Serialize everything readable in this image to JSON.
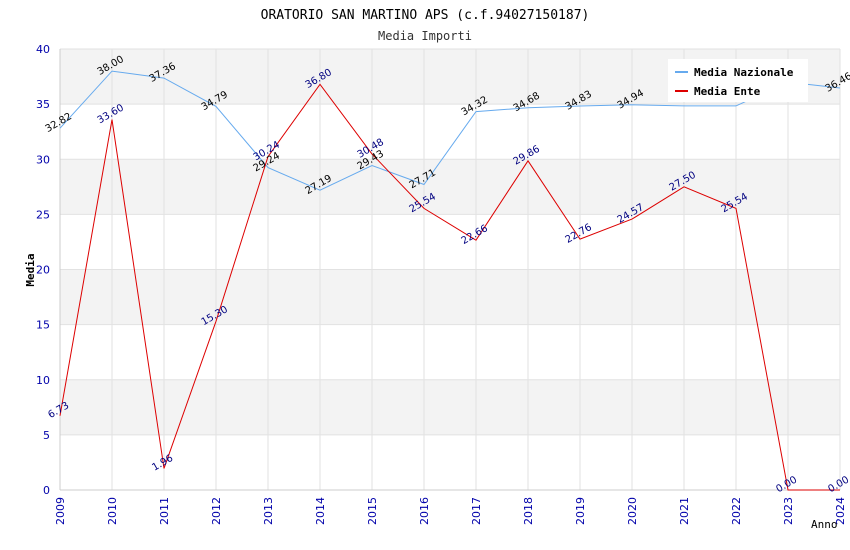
{
  "chart_data": {
    "type": "line",
    "title": "ORATORIO SAN MARTINO APS (c.f.94027150187)",
    "subtitle": "Media Importi",
    "xlabel": "Anno",
    "ylabel": "Media",
    "ylim": [
      0,
      40
    ],
    "y_ticks": [
      "0",
      "5",
      "10",
      "15",
      "20",
      "25",
      "30",
      "35",
      "40"
    ],
    "x": [
      "2009",
      "2010",
      "2011",
      "2012",
      "2013",
      "2014",
      "2015",
      "2016",
      "2017",
      "2018",
      "2019",
      "2020",
      "2021",
      "2022",
      "2023",
      "2024"
    ],
    "grid": true,
    "legend_position": "top-right",
    "series": [
      {
        "name": "Media Nazionale",
        "color": "#66aaee",
        "values": [
          32.82,
          38.0,
          37.36,
          34.79,
          29.24,
          27.19,
          29.43,
          27.71,
          34.32,
          34.68,
          34.83,
          34.94,
          34.84,
          34.84,
          37.0,
          36.46
        ],
        "labels": [
          "32.82",
          "38.00",
          "37.36",
          "34.79",
          "29.24",
          "27.19",
          "29.43",
          "27.71",
          "34.32",
          "34.68",
          "34.83",
          "34.94",
          "",
          "",
          "",
          "36.46"
        ]
      },
      {
        "name": "Media Ente",
        "color": "#dd0000",
        "values": [
          6.73,
          33.6,
          1.96,
          15.3,
          30.24,
          36.8,
          30.48,
          25.54,
          22.66,
          29.86,
          22.76,
          24.57,
          27.5,
          25.54,
          0.0,
          0.0
        ],
        "labels": [
          "6.73",
          "33.60",
          "1.96",
          "15.30",
          "30.24",
          "36.80",
          "30.48",
          "25.54",
          "22.66",
          "29.86",
          "22.76",
          "24.57",
          "27.50",
          "25.54",
          "0.00",
          "0.00"
        ]
      }
    ]
  }
}
